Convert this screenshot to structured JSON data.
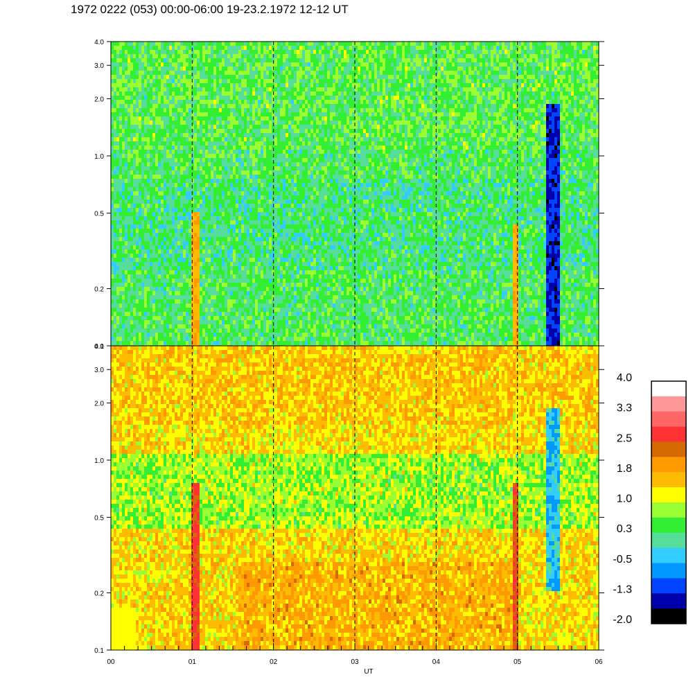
{
  "title": "1972 0222 (053) 00:00-06:00 19-23.2.1972  12-12 UT",
  "chart_data": [
    {
      "type": "heatmap",
      "panel": "top",
      "x_range": [
        0,
        6
      ],
      "y_scale": "log",
      "y_range": [
        0.1,
        4.0
      ],
      "y_ticks": [
        "0.1",
        "0.2",
        "0.5",
        "1.0",
        "2.0",
        "3.0",
        "4.0"
      ],
      "dashed_vertical_lines_at": [
        1,
        2,
        3,
        4,
        5
      ],
      "dominant_levels": [
        "green",
        "teal",
        "light-blue",
        "yellow-green"
      ]
    },
    {
      "type": "heatmap",
      "panel": "bottom",
      "x_range": [
        0,
        6
      ],
      "x_ticks": [
        "00",
        "01",
        "02",
        "03",
        "04",
        "05",
        "06"
      ],
      "xlabel": "UT",
      "y_scale": "log",
      "y_range": [
        0.1,
        4.0
      ],
      "y_ticks": [
        "0.1",
        "0.2",
        "0.5",
        "1.0",
        "2.0",
        "3.0",
        "4.0"
      ],
      "dashed_vertical_lines_at": [
        1,
        2,
        3,
        4,
        5
      ],
      "dominant_levels": [
        "yellow",
        "orange",
        "green",
        "red"
      ]
    }
  ],
  "colorbar": {
    "tick_labels": [
      "4.0",
      "3.3",
      "2.5",
      "1.8",
      "1.0",
      "0.3",
      "-0.5",
      "-1.3",
      "-2.0"
    ],
    "colors_top_to_bottom": [
      "#ffffff",
      "#ff9999",
      "#ff6666",
      "#ff3333",
      "#d46a00",
      "#ff9900",
      "#ffbb00",
      "#ffff00",
      "#99ff33",
      "#33ee33",
      "#55dd99",
      "#33ccff",
      "#0099ff",
      "#0044ff",
      "#0000aa",
      "#000000"
    ]
  }
}
